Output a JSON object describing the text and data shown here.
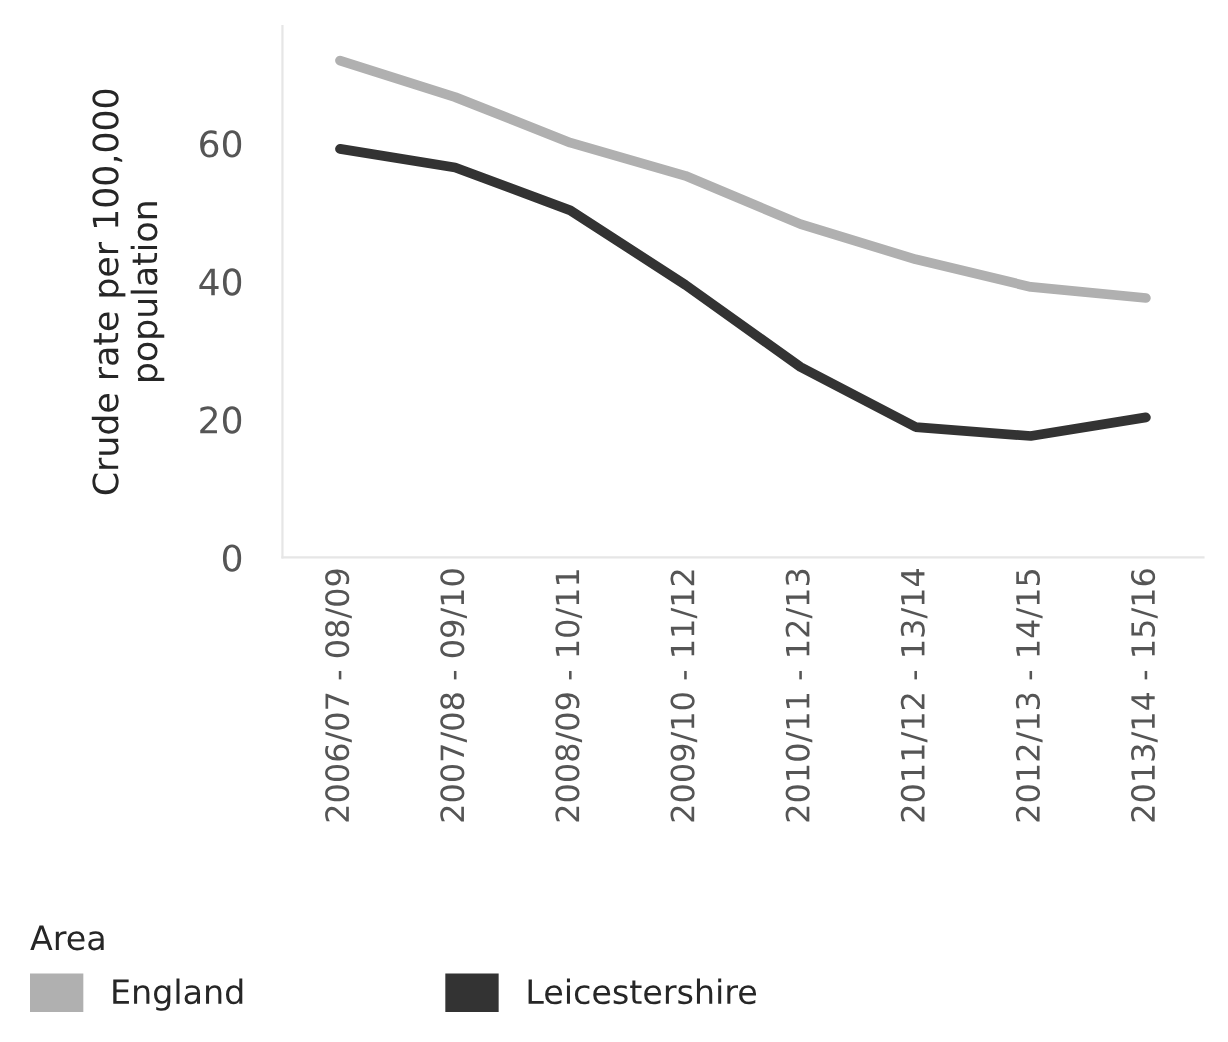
{
  "chart_data": {
    "type": "line",
    "ylabel": "Crude rate per 100,000\npopulation",
    "legend_title": "Area",
    "legend": "bottom",
    "categories": [
      "2006/07 - 08/09",
      "2007/08 - 09/10",
      "2008/09 - 10/11",
      "2009/10 - 11/12",
      "2010/11 - 12/13",
      "2011/12 - 13/14",
      "2012/13 - 14/15",
      "2013/14 - 15/16"
    ],
    "series": [
      {
        "name": "England",
        "color": "#b0b0b0",
        "values": [
          72.0,
          66.7,
          60.1,
          55.3,
          48.3,
          43.2,
          39.2,
          37.6
        ]
      },
      {
        "name": "Leicestershire",
        "color": "#333333",
        "values": [
          59.2,
          56.5,
          50.3,
          39.5,
          27.6,
          18.9,
          17.6,
          20.3
        ]
      }
    ],
    "ylim": [
      0,
      77
    ],
    "yticks": [
      0,
      20,
      40,
      60
    ],
    "grid": false
  }
}
